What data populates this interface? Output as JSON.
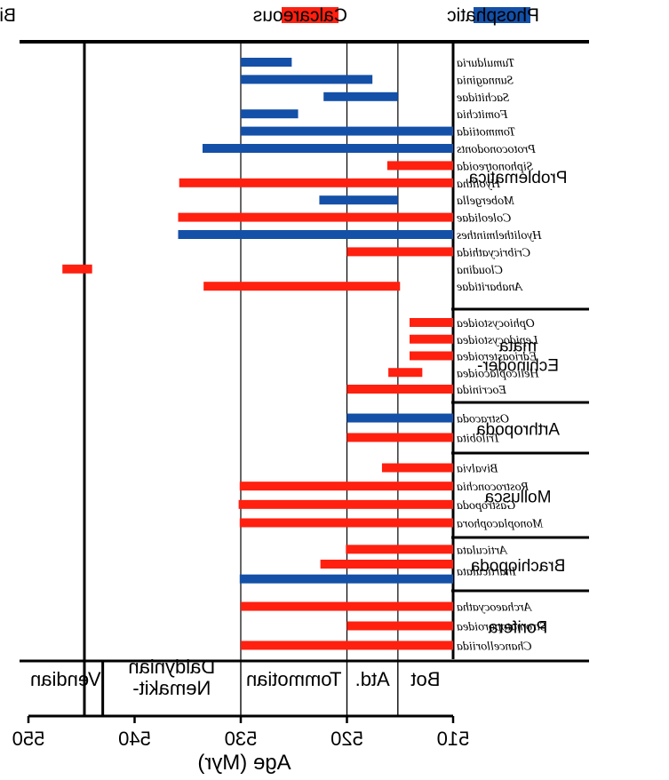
{
  "chart_data": {
    "type": "bar",
    "subtype": "horizontal-range",
    "orientation": "mirrored",
    "legend": {
      "title": "Bioinorganic Materials:",
      "placement": "top",
      "entries": [
        {
          "name": "Calcareous",
          "color": "#ff2010"
        },
        {
          "name": "Phosphatic",
          "color": "#1450a8"
        }
      ]
    },
    "xlabel": "Age (Myr)",
    "ylabel": "",
    "xlim": [
      550,
      510
    ],
    "xticks": [
      550,
      540,
      530,
      520,
      510
    ],
    "stage_boundaries": [
      530.0,
      520.0,
      515.2
    ],
    "stages": [
      {
        "label": "Vendian",
        "from": 550,
        "to": 543.0
      },
      {
        "label": "Nemakit-\nDaldynian",
        "from": 543.0,
        "to": 530.0
      },
      {
        "label": "Tommotian",
        "from": 530.0,
        "to": 520.0
      },
      {
        "label": "Atd.",
        "from": 520.0,
        "to": 515.2
      },
      {
        "label": "Bot",
        "from": 515.2,
        "to": 510.0
      }
    ],
    "groups": [
      {
        "label": "Problematica",
        "taxa": [
          {
            "name": "Tumulduria",
            "material": "Phosphatic",
            "range": [
              530.0,
              525.2
            ]
          },
          {
            "name": "Sunnaginia",
            "material": "Phosphatic",
            "range": [
              530.0,
              517.6
            ]
          },
          {
            "name": "Sachitidae",
            "material": "Phosphatic",
            "range": [
              522.2,
              515.2
            ]
          },
          {
            "name": "Fomitchia",
            "material": "Phosphatic",
            "range": [
              530.0,
              524.6
            ]
          },
          {
            "name": "Tommotiida",
            "material": "Phosphatic",
            "range": [
              530.0,
              510.0
            ]
          },
          {
            "name": "Protoconodonts",
            "material": "Phosphatic",
            "range": [
              533.6,
              510.0
            ]
          },
          {
            "name": "Siphonotreoida",
            "material": "Calcareous",
            "range": [
              516.2,
              510.0
            ]
          },
          {
            "name": "Hyolitha",
            "material": "Calcareous",
            "range": [
              535.8,
              510.0
            ]
          },
          {
            "name": "Mobergella",
            "material": "Phosphatic",
            "range": [
              522.6,
              515.2
            ]
          },
          {
            "name": "Coleolidae",
            "material": "Calcareous",
            "range": [
              535.9,
              510.0
            ]
          },
          {
            "name": "Hyolithelminthes",
            "material": "Phosphatic",
            "range": [
              535.9,
              510.0
            ]
          },
          {
            "name": "Cribricyathida",
            "material": "Calcareous",
            "range": [
              520.0,
              510.0
            ]
          },
          {
            "name": "Cloudina",
            "material": "Calcareous",
            "range": [
              546.8,
              544.0
            ]
          },
          {
            "name": "Anabaritidae",
            "material": "Calcareous",
            "range": [
              533.5,
              515.0
            ]
          }
        ]
      },
      {
        "label": "Echinoder-\nmata",
        "taxa": [
          {
            "name": "Ophiocystoidea",
            "material": "Calcareous",
            "range": [
              514.1,
              510.0
            ]
          },
          {
            "name": "Lepidocystoidea",
            "material": "Calcareous",
            "range": [
              514.1,
              510.0
            ]
          },
          {
            "name": "Edrioasteroidea",
            "material": "Calcareous",
            "range": [
              514.1,
              510.0
            ]
          },
          {
            "name": "Helicoplacoidea",
            "material": "Calcareous",
            "range": [
              516.1,
              512.9
            ]
          },
          {
            "name": "Eocrinida",
            "material": "Calcareous",
            "range": [
              520.0,
              510.0
            ]
          }
        ]
      },
      {
        "label": "Arthropoda",
        "taxa": [
          {
            "name": "Ostracoda",
            "material": "Phosphatic",
            "range": [
              520.0,
              510.0
            ]
          },
          {
            "name": "Trilobita",
            "material": "Calcareous",
            "range": [
              520.0,
              510.0
            ]
          }
        ]
      },
      {
        "label": "Mollusca",
        "taxa": [
          {
            "name": "Bivalvia",
            "material": "Calcareous",
            "range": [
              516.7,
              510.0
            ]
          },
          {
            "name": "Rostroconchia",
            "material": "Calcareous",
            "range": [
              530.1,
              510.0
            ]
          },
          {
            "name": "Gastropoda",
            "material": "Calcareous",
            "range": [
              530.2,
              510.0
            ]
          },
          {
            "name": "Monoplacophora",
            "material": "Calcareous",
            "range": [
              530.1,
              510.0
            ]
          }
        ]
      },
      {
        "label": "Brachiopoda",
        "taxa": [
          {
            "name": "Articulata",
            "material": "Calcareous",
            "range": [
              520.1,
              510.0
            ]
          },
          {
            "name": "Inarticulata",
            "material": "Calcareous",
            "range": [
              522.5,
              510.0
            ]
          },
          {
            "name": "Inarticulata",
            "material": "Phosphatic",
            "range": [
              530.1,
              510.0
            ]
          }
        ]
      },
      {
        "label": "Porifera",
        "taxa": [
          {
            "name": "Archaeocyatha",
            "material": "Calcareous",
            "range": [
              530.0,
              510.0
            ]
          },
          {
            "name": "Stromatoporoidea",
            "material": "Calcareous",
            "range": [
              520.0,
              510.0
            ]
          },
          {
            "name": "Chancelloriida",
            "material": "Calcareous",
            "range": [
              530.0,
              510.0
            ]
          }
        ]
      }
    ],
    "grid": false
  }
}
